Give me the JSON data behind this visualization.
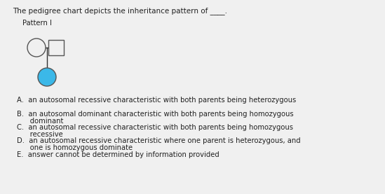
{
  "title": "The pedigree chart depicts the inheritance pattern of ____.",
  "pattern_label": "Pattern I",
  "bg_color": "#f0f0f0",
  "text_color": "#222222",
  "choices_line1": [
    "A.  an autosomal recessive characteristic with both parents being heterozygous",
    "B.  an autosomal dominant characteristic with both parents being homozygous",
    "C.  an autosomal recessive characteristic with both parents being homozygous",
    "D.  an autosomal recessive characteristic where one parent is heterozygous, and",
    "E.  answer cannot be determined by information provided"
  ],
  "choices_line2": [
    "",
    "      dominant",
    "      recessive",
    "      one is homozygous dominate",
    ""
  ],
  "circle_unaffected_facecolor": "#f0f0f0",
  "circle_affected_facecolor": "#3bb8e8",
  "square_facecolor": "#f0f0f0",
  "line_color": "#333333",
  "edge_color": "#555555",
  "font_size": 7.2,
  "title_font_size": 7.5,
  "label_font_size": 7.2
}
